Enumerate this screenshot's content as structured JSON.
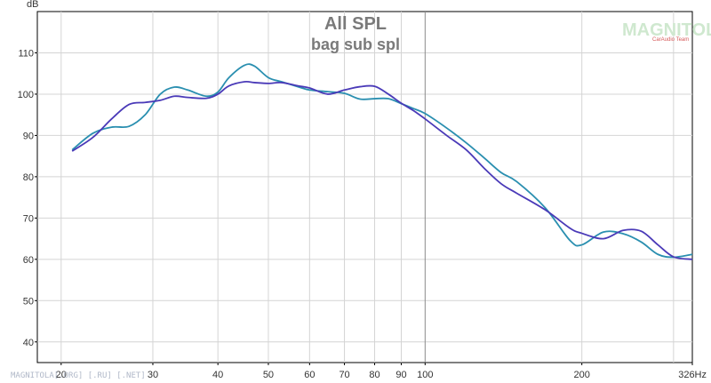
{
  "chart_data": {
    "type": "line",
    "title": "All SPL",
    "subtitle": "bag sub spl",
    "ylabel": "dB",
    "xunit": "Hz",
    "x_scale": "log",
    "xlim": [
      18,
      326
    ],
    "ylim": [
      35,
      120
    ],
    "grid": true,
    "y_ticks": [
      40,
      50,
      60,
      70,
      80,
      90,
      100,
      110
    ],
    "x_ticks": [
      20,
      30,
      40,
      50,
      60,
      70,
      80,
      90,
      100,
      200,
      326
    ],
    "x_tick_labels": [
      "20",
      "30",
      "40",
      "50",
      "60",
      "70",
      "80",
      "90",
      "100",
      "200",
      "326Hz"
    ],
    "series": [
      {
        "color": "#2a8fb0",
        "x": [
          21,
          23,
          25,
          27,
          29,
          31,
          33,
          35,
          38,
          40,
          42,
          45,
          47,
          50,
          53,
          57,
          60,
          65,
          70,
          75,
          80,
          85,
          90,
          95,
          100,
          110,
          120,
          130,
          140,
          150,
          170,
          190,
          200,
          220,
          240,
          260,
          280,
          300,
          326
        ],
        "y": [
          86.5,
          90.5,
          92,
          92.2,
          95,
          100,
          101.7,
          101,
          99.5,
          100.5,
          104,
          107,
          106.8,
          104,
          103,
          101.8,
          101,
          100.6,
          100.2,
          98.8,
          98.9,
          98.9,
          97.7,
          96.5,
          95.3,
          91.8,
          88.2,
          84.5,
          81,
          78.8,
          72.5,
          64.5,
          63.5,
          66.6,
          66.2,
          64.2,
          61.2,
          60.5,
          61.2
        ]
      },
      {
        "color": "#4a3ab8",
        "x": [
          21,
          23,
          25,
          27,
          29,
          31,
          33,
          35,
          38,
          40,
          42,
          45,
          47,
          50,
          53,
          57,
          60,
          65,
          70,
          75,
          80,
          85,
          90,
          95,
          100,
          110,
          120,
          130,
          140,
          150,
          170,
          190,
          200,
          220,
          240,
          260,
          280,
          300,
          326
        ],
        "y": [
          86.2,
          89.5,
          94,
          97.5,
          98,
          98.5,
          99.5,
          99.2,
          99,
          100,
          102,
          103,
          102.8,
          102.6,
          102.8,
          102,
          101.5,
          100,
          101,
          101.8,
          101.9,
          100,
          97.8,
          96,
          94,
          90,
          86.5,
          82,
          78.3,
          76,
          72,
          67.5,
          66.3,
          65,
          67,
          66.8,
          63.5,
          60.6,
          60
        ]
      }
    ]
  },
  "watermark": {
    "logo": "MAGNITOLA",
    "logo_sub": "CarAudio Team",
    "footer": "MAGNITOLA[.ORG] [.RU] [.NET]"
  }
}
